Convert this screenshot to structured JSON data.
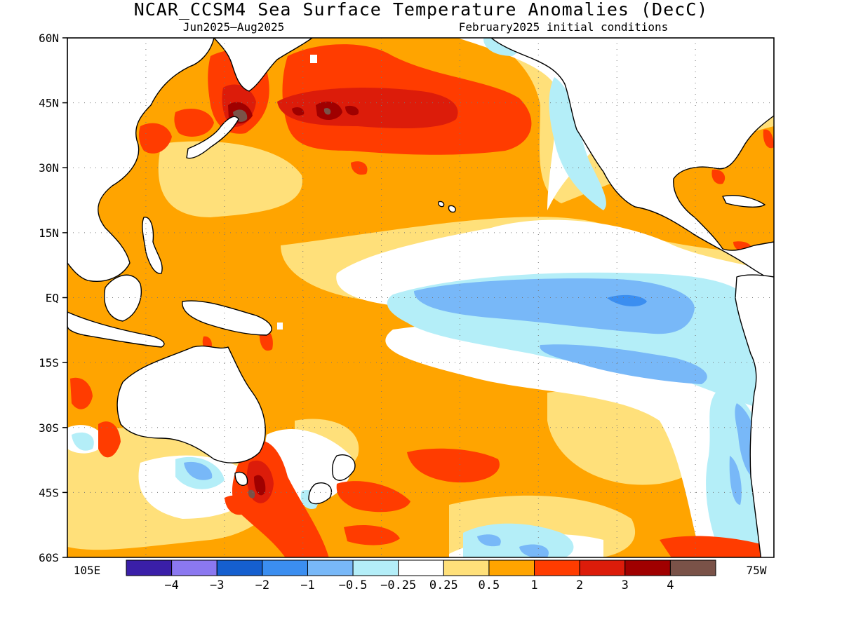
{
  "map": {
    "title": "NCAR_CCSM4 Sea Surface Temperature Anomalies (DecC)",
    "subtitle_left": "Jun2025–Aug2025",
    "subtitle_right": "February2025 initial conditions",
    "lat_labels": [
      "60N",
      "45N",
      "30N",
      "15N",
      "EQ",
      "15S",
      "30S",
      "45S",
      "60S"
    ],
    "lon_labels": {
      "west": "105E",
      "east": "75W"
    },
    "colorbar": {
      "colors": [
        "#3a1fa8",
        "#8b78f0",
        "#155fcf",
        "#3b8ef0",
        "#78b8f8",
        "#b4eef8",
        "#ffffff",
        "#ffe07a",
        "#ffa400",
        "#ff3c00",
        "#dc1c0a",
        "#a00000",
        "#7a5248"
      ],
      "labels": [
        "−4",
        "−3",
        "−2",
        "−1",
        "−0.5",
        "−0.25",
        "0.25",
        "0.5",
        "1",
        "2",
        "3",
        "4"
      ]
    }
  }
}
